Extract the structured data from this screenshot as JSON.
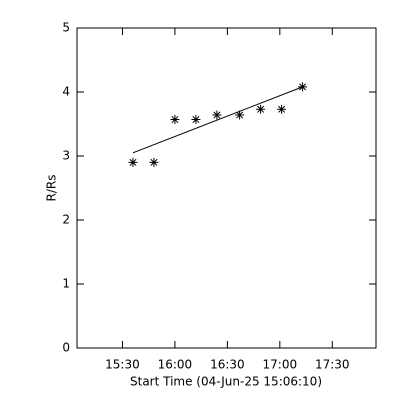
{
  "chart_data": {
    "type": "scatter",
    "xlabel": "Start Time (04-Jun-25 15:06:10)",
    "ylabel": "R/Rs",
    "xlim": [
      904,
      1075
    ],
    "xticks": [
      {
        "value": 930,
        "label": "15:30"
      },
      {
        "value": 960,
        "label": "16:00"
      },
      {
        "value": 990,
        "label": "16:30"
      },
      {
        "value": 1020,
        "label": "17:00"
      },
      {
        "value": 1050,
        "label": "17:30"
      }
    ],
    "ylim": [
      0,
      5
    ],
    "yticks": [
      0,
      1,
      2,
      3,
      4,
      5
    ],
    "color": "#000000",
    "series": [
      {
        "marker": "asterisk",
        "x": [
          936,
          948,
          960,
          972,
          984,
          997,
          1009,
          1021,
          1033
        ],
        "values": [
          2.9,
          2.9,
          3.57,
          3.57,
          3.64,
          3.64,
          3.73,
          3.73,
          4.08
        ]
      },
      {
        "marker": "line",
        "x": [
          936,
          1033
        ],
        "values": [
          3.05,
          4.08
        ]
      }
    ]
  }
}
